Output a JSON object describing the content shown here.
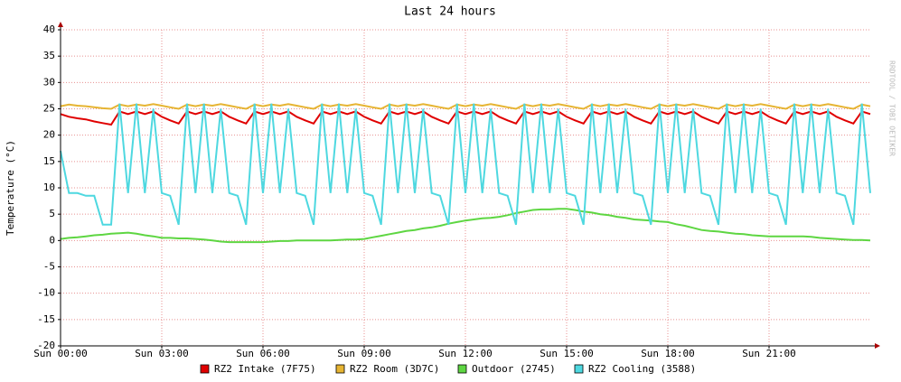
{
  "chart_data": {
    "type": "line",
    "title": "Last 24 hours",
    "ylabel": "Temperature (°C)",
    "watermark": "RRDTOOL / TOBI OETIKER",
    "x": [
      0,
      0.25,
      0.5,
      0.75,
      1,
      1.25,
      1.5,
      1.75,
      2,
      2.25,
      2.5,
      2.75,
      3,
      3.25,
      3.5,
      3.75,
      4,
      4.25,
      4.5,
      4.75,
      5,
      5.25,
      5.5,
      5.75,
      6,
      6.25,
      6.5,
      6.75,
      7,
      7.25,
      7.5,
      7.75,
      8,
      8.25,
      8.5,
      8.75,
      9,
      9.25,
      9.5,
      9.75,
      10,
      10.25,
      10.5,
      10.75,
      11,
      11.25,
      11.5,
      11.75,
      12,
      12.25,
      12.5,
      12.75,
      13,
      13.25,
      13.5,
      13.75,
      14,
      14.25,
      14.5,
      14.75,
      15,
      15.25,
      15.5,
      15.75,
      16,
      16.25,
      16.5,
      16.75,
      17,
      17.25,
      17.5,
      17.75,
      18,
      18.25,
      18.5,
      18.75,
      19,
      19.25,
      19.5,
      19.75,
      20,
      20.25,
      20.5,
      20.75,
      21,
      21.25,
      21.5,
      21.75,
      22,
      22.25,
      22.5,
      22.75,
      23,
      23.25,
      23.5,
      23.75,
      24
    ],
    "series": [
      {
        "name": "RZ2 Intake (7F75)",
        "color": "#e00000",
        "values": [
          24,
          23.5,
          23.2,
          23,
          22.6,
          22.3,
          22,
          24.5,
          24,
          24.5,
          24,
          24.5,
          23.5,
          22.8,
          22.2,
          24.5,
          24,
          24.5,
          24,
          24.5,
          23.5,
          22.8,
          22.2,
          24.5,
          24,
          24.5,
          24,
          24.5,
          23.5,
          22.8,
          22.2,
          24.5,
          24,
          24.5,
          24,
          24.5,
          23.5,
          22.8,
          22.2,
          24.5,
          24,
          24.5,
          24,
          24.5,
          23.5,
          22.8,
          22.2,
          24.5,
          24,
          24.5,
          24,
          24.5,
          23.5,
          22.8,
          22.2,
          24.5,
          24,
          24.5,
          24,
          24.5,
          23.5,
          22.8,
          22.2,
          24.5,
          24,
          24.5,
          24,
          24.5,
          23.5,
          22.8,
          22.2,
          24.5,
          24,
          24.5,
          24,
          24.5,
          23.5,
          22.8,
          22.2,
          24.5,
          24,
          24.5,
          24,
          24.5,
          23.5,
          22.8,
          22.2,
          24.5,
          24,
          24.5,
          24,
          24.5,
          23.5,
          22.8,
          22.2,
          24.5,
          24
        ]
      },
      {
        "name": "RZ2 Room (3D7C)",
        "color": "#e6b432",
        "values": [
          25.5,
          25.8,
          25.6,
          25.5,
          25.3,
          25.1,
          25,
          25.8,
          25.5,
          25.8,
          25.6,
          25.9,
          25.6,
          25.3,
          25,
          25.8,
          25.5,
          25.8,
          25.6,
          25.9,
          25.6,
          25.3,
          25,
          25.8,
          25.5,
          25.8,
          25.6,
          25.9,
          25.6,
          25.3,
          25,
          25.8,
          25.5,
          25.8,
          25.6,
          25.9,
          25.6,
          25.3,
          25,
          25.8,
          25.5,
          25.8,
          25.6,
          25.9,
          25.6,
          25.3,
          25,
          25.8,
          25.5,
          25.8,
          25.6,
          25.9,
          25.6,
          25.3,
          25,
          25.8,
          25.5,
          25.8,
          25.6,
          25.9,
          25.6,
          25.3,
          25,
          25.8,
          25.5,
          25.8,
          25.6,
          25.9,
          25.6,
          25.3,
          25,
          25.8,
          25.5,
          25.8,
          25.6,
          25.9,
          25.6,
          25.3,
          25,
          25.8,
          25.5,
          25.8,
          25.6,
          25.9,
          25.6,
          25.3,
          25,
          25.8,
          25.5,
          25.8,
          25.6,
          25.9,
          25.6,
          25.3,
          25,
          25.8,
          25.5
        ]
      },
      {
        "name": "Outdoor (2745)",
        "color": "#5ed642",
        "values": [
          0.3,
          0.5,
          0.6,
          0.8,
          1,
          1.1,
          1.3,
          1.4,
          1.5,
          1.3,
          1,
          0.8,
          0.5,
          0.5,
          0.4,
          0.4,
          0.3,
          0.2,
          0,
          -0.2,
          -0.3,
          -0.3,
          -0.3,
          -0.3,
          -0.3,
          -0.2,
          -0.1,
          -0.1,
          0,
          0,
          0,
          0,
          0,
          0.1,
          0.2,
          0.2,
          0.3,
          0.6,
          0.9,
          1.2,
          1.5,
          1.8,
          2,
          2.3,
          2.5,
          2.8,
          3.2,
          3.5,
          3.8,
          4,
          4.2,
          4.3,
          4.5,
          4.8,
          5.2,
          5.5,
          5.8,
          5.9,
          5.9,
          6,
          6,
          5.8,
          5.5,
          5.3,
          5,
          4.8,
          4.5,
          4.3,
          4,
          3.9,
          3.8,
          3.6,
          3.5,
          3.1,
          2.8,
          2.4,
          2,
          1.8,
          1.7,
          1.5,
          1.3,
          1.2,
          1,
          0.9,
          0.8,
          0.8,
          0.8,
          0.8,
          0.8,
          0.7,
          0.5,
          0.4,
          0.3,
          0.2,
          0.1,
          0.1,
          0
        ]
      },
      {
        "name": "RZ2 Cooling (3588)",
        "color": "#4ed8e0",
        "values": [
          17,
          9,
          9,
          8.5,
          8.5,
          3,
          3,
          26,
          9,
          26,
          9,
          25,
          9,
          8.5,
          3,
          26,
          9,
          26,
          9,
          25,
          9,
          8.5,
          3,
          26,
          9,
          26,
          9,
          25,
          9,
          8.5,
          3,
          26,
          9,
          26,
          9,
          25,
          9,
          8.5,
          3,
          26,
          9,
          26,
          9,
          25,
          9,
          8.5,
          3,
          26,
          9,
          26,
          9,
          25,
          9,
          8.5,
          3,
          26,
          9,
          26,
          9,
          25,
          9,
          8.5,
          3,
          26,
          9,
          26,
          9,
          25,
          9,
          8.5,
          3,
          26,
          9,
          26,
          9,
          25,
          9,
          8.5,
          3,
          26,
          9,
          26,
          9,
          25,
          9,
          8.5,
          3,
          26,
          9,
          26,
          9,
          25,
          9,
          8.5,
          3,
          26,
          9
        ]
      }
    ],
    "xlim": [
      0,
      24
    ],
    "xticks": [
      {
        "value": 0,
        "label": "Sun 00:00"
      },
      {
        "value": 3,
        "label": "Sun 03:00"
      },
      {
        "value": 6,
        "label": "Sun 06:00"
      },
      {
        "value": 9,
        "label": "Sun 09:00"
      },
      {
        "value": 12,
        "label": "Sun 12:00"
      },
      {
        "value": 15,
        "label": "Sun 15:00"
      },
      {
        "value": 18,
        "label": "Sun 18:00"
      },
      {
        "value": 21,
        "label": "Sun 21:00"
      }
    ],
    "ylim": [
      -20,
      40
    ],
    "yticks": [
      -20,
      -15,
      -10,
      -5,
      0,
      5,
      10,
      15,
      20,
      25,
      30,
      35,
      40
    ],
    "grid": true
  }
}
